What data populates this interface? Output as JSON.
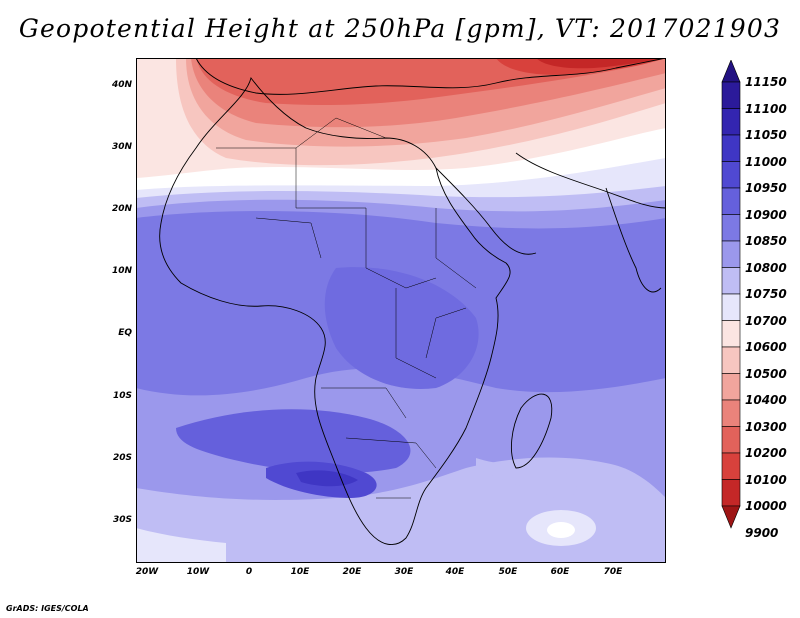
{
  "title": "Geopotential Height at 250hPa [gpm], VT: 2017021903",
  "credit": "GrADS: IGES/COLA",
  "map": {
    "lat_labels": [
      "40N",
      "30N",
      "20N",
      "10N",
      "EQ",
      "10S",
      "20S",
      "30S"
    ],
    "lon_labels": [
      "20W",
      "10W",
      "0",
      "10E",
      "20E",
      "30E",
      "40E",
      "50E",
      "60E",
      "70E"
    ],
    "field": "Geopotential Height",
    "level": "250hPa",
    "units": "gpm"
  },
  "colorbar": {
    "levels": [
      "11150",
      "11100",
      "11050",
      "11000",
      "10950",
      "10900",
      "10850",
      "10800",
      "10750",
      "10700",
      "10600",
      "10500",
      "10400",
      "10300",
      "10200",
      "10100",
      "10000",
      "9900"
    ],
    "colors": [
      "#231282",
      "#2b1a9a",
      "#3325b0",
      "#3f36c4",
      "#5049d2",
      "#6560dc",
      "#7c79e4",
      "#9b98ec",
      "#bfbdf4",
      "#e6e6fb",
      "#fbe5e2",
      "#f7c6c0",
      "#f1a59d",
      "#ea837b",
      "#e2625b",
      "#d8413c",
      "#c42727",
      "#9e1515"
    ]
  }
}
